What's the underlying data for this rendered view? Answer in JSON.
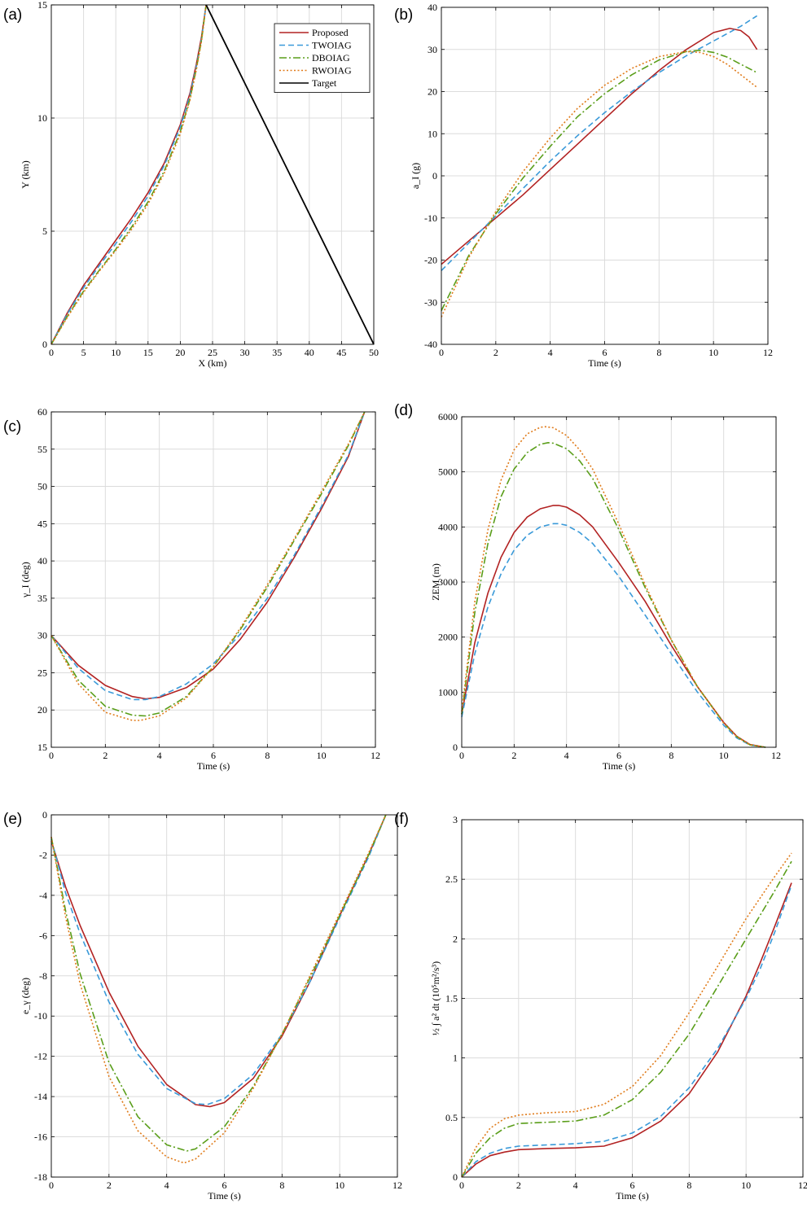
{
  "styles": {
    "Proposed": {
      "color": "#B22222",
      "dash": ""
    },
    "TWOIAG": {
      "color": "#3A9AD9",
      "dash": "7 4"
    },
    "DBOIAG": {
      "color": "#5A9E1A",
      "dash": "9 3 2 3"
    },
    "RWOIAG": {
      "color": "#E07B1A",
      "dash": "2 2.5"
    },
    "Target": {
      "color": "#000000",
      "dash": ""
    }
  },
  "chart_data": [
    {
      "id": "a",
      "panel_label": "(a)",
      "type": "line",
      "xlabel": "X (km)",
      "ylabel": "Y (km)",
      "xlim": [
        0,
        50
      ],
      "ylim": [
        0,
        15
      ],
      "xticks": [
        0,
        5,
        10,
        15,
        20,
        25,
        30,
        35,
        40,
        45,
        50
      ],
      "yticks": [
        0,
        5,
        10,
        15
      ],
      "grid": true,
      "legend": {
        "placement": "top-right",
        "entries": [
          "Proposed",
          "TWOIAG",
          "DBOIAG",
          "RWOIAG",
          "Target"
        ]
      },
      "series": [
        {
          "name": "Proposed",
          "x": [
            0,
            2.5,
            5,
            7.5,
            10,
            12.5,
            15,
            17.5,
            20,
            21.5,
            22.5,
            23.3,
            24
          ],
          "y": [
            0,
            1.4,
            2.6,
            3.6,
            4.6,
            5.6,
            6.7,
            8.0,
            9.7,
            11.1,
            12.4,
            13.6,
            15
          ]
        },
        {
          "name": "TWOIAG",
          "x": [
            0,
            2.5,
            5,
            7.5,
            10,
            12.5,
            15,
            17.5,
            20,
            21.5,
            22.5,
            23.3,
            24
          ],
          "y": [
            0,
            1.35,
            2.5,
            3.5,
            4.45,
            5.45,
            6.55,
            7.9,
            9.6,
            11.0,
            12.3,
            13.5,
            15
          ]
        },
        {
          "name": "DBOIAG",
          "x": [
            0,
            2.5,
            5,
            7.5,
            10,
            12.5,
            15,
            17.5,
            20,
            21.5,
            22.5,
            23.3,
            24
          ],
          "y": [
            0,
            1.25,
            2.35,
            3.3,
            4.2,
            5.2,
            6.3,
            7.65,
            9.4,
            10.85,
            12.2,
            13.45,
            15
          ]
        },
        {
          "name": "RWOIAG",
          "x": [
            0,
            2.5,
            5,
            7.5,
            10,
            12.5,
            15,
            17.5,
            20,
            21.5,
            22.5,
            23.3,
            24
          ],
          "y": [
            0,
            1.2,
            2.3,
            3.25,
            4.15,
            5.1,
            6.2,
            7.55,
            9.3,
            10.8,
            12.15,
            13.4,
            15
          ]
        },
        {
          "name": "Target",
          "x": [
            24,
            50
          ],
          "y": [
            15,
            0
          ]
        }
      ]
    },
    {
      "id": "b",
      "panel_label": "(b)",
      "type": "line",
      "xlabel": "Time (s)",
      "ylabel": "a_I (g)",
      "xlim": [
        0,
        12
      ],
      "ylim": [
        -40,
        40
      ],
      "xticks": [
        0,
        2,
        4,
        6,
        8,
        10,
        12
      ],
      "yticks": [
        -40,
        -30,
        -20,
        -10,
        0,
        10,
        20,
        30,
        40
      ],
      "grid": true,
      "series": [
        {
          "name": "Proposed",
          "x": [
            0,
            1,
            2,
            3,
            4,
            5,
            6,
            7,
            8,
            9,
            10,
            10.6,
            11,
            11.3,
            11.6
          ],
          "y": [
            -21,
            -15.5,
            -10,
            -4.5,
            1.5,
            7.5,
            13.5,
            19.5,
            25,
            30,
            34,
            35,
            34.5,
            33,
            30
          ]
        },
        {
          "name": "TWOIAG",
          "x": [
            0,
            1,
            2,
            3,
            4,
            5,
            6,
            7,
            8,
            9,
            10,
            11,
            11.6
          ],
          "y": [
            -22.5,
            -16,
            -9.5,
            -3,
            3.5,
            9.5,
            15,
            20,
            24.5,
            28.5,
            32,
            35.5,
            38
          ]
        },
        {
          "name": "DBOIAG",
          "x": [
            0,
            1,
            2,
            3,
            4,
            5,
            6,
            7,
            8,
            9,
            9.5,
            10,
            10.5,
            11,
            11.6
          ],
          "y": [
            -32,
            -19,
            -9,
            -0.5,
            7,
            14,
            19.5,
            24,
            27.5,
            29.5,
            29.8,
            29.3,
            28.2,
            26.5,
            24.5
          ]
        },
        {
          "name": "RWOIAG",
          "x": [
            0,
            1,
            2,
            3,
            4,
            5,
            6,
            7,
            8,
            9,
            9.5,
            10,
            10.5,
            11,
            11.6
          ],
          "y": [
            -33.5,
            -19.5,
            -8.5,
            1,
            9,
            16,
            21.5,
            25.5,
            28.3,
            29.5,
            29.3,
            28.3,
            26.5,
            24,
            21
          ]
        }
      ]
    },
    {
      "id": "c",
      "panel_label": "(c)",
      "type": "line",
      "xlabel": "Time (s)",
      "ylabel": "γ_I (deg)",
      "xlim": [
        0,
        12
      ],
      "ylim": [
        15,
        60
      ],
      "xticks": [
        0,
        2,
        4,
        6,
        8,
        10,
        12
      ],
      "yticks": [
        15,
        20,
        25,
        30,
        35,
        40,
        45,
        50,
        55,
        60
      ],
      "grid": true,
      "series": [
        {
          "name": "Proposed",
          "x": [
            0,
            1,
            2,
            3,
            3.5,
            4,
            5,
            6,
            7,
            8,
            9,
            10,
            11,
            11.6
          ],
          "y": [
            30,
            26,
            23.3,
            21.8,
            21.5,
            21.7,
            23,
            25.5,
            29.5,
            34.5,
            40.5,
            47,
            54,
            60
          ]
        },
        {
          "name": "TWOIAG",
          "x": [
            0,
            1,
            2,
            3,
            3.5,
            4,
            5,
            6,
            7,
            8,
            9,
            10,
            11,
            11.6
          ],
          "y": [
            30,
            25.6,
            22.6,
            21.4,
            21.4,
            21.8,
            23.5,
            26.2,
            30.2,
            35,
            40.8,
            47.3,
            54.2,
            60
          ]
        },
        {
          "name": "DBOIAG",
          "x": [
            0,
            1,
            2,
            3,
            3.5,
            4,
            5,
            6,
            7,
            8,
            9,
            10,
            11,
            11.6
          ],
          "y": [
            30,
            24,
            20.5,
            19.3,
            19.2,
            19.6,
            21.8,
            25.8,
            30.8,
            36.5,
            42.8,
            49,
            55.5,
            60
          ]
        },
        {
          "name": "RWOIAG",
          "x": [
            0,
            1,
            2,
            3,
            3.3,
            4,
            5,
            6,
            7,
            8,
            9,
            10,
            11,
            11.6
          ],
          "y": [
            30,
            23.5,
            19.7,
            18.6,
            18.6,
            19.2,
            21.6,
            25.8,
            31,
            36.8,
            43,
            49.3,
            55.7,
            60
          ]
        }
      ]
    },
    {
      "id": "d",
      "panel_label": "(d)",
      "type": "line",
      "xlabel": "Time (s)",
      "ylabel": "ZEM (m)",
      "xlim": [
        0,
        12
      ],
      "ylim": [
        0,
        6000
      ],
      "xticks": [
        0,
        2,
        4,
        6,
        8,
        10,
        12
      ],
      "yticks": [
        0,
        1000,
        2000,
        3000,
        4000,
        5000,
        6000
      ],
      "grid": true,
      "series": [
        {
          "name": "Proposed",
          "x": [
            0,
            0.5,
            1,
            1.5,
            2,
            2.5,
            3,
            3.5,
            3.7,
            4,
            4.5,
            5,
            6,
            7,
            8,
            9,
            10,
            10.5,
            11,
            11.6
          ],
          "y": [
            600,
            1900,
            2800,
            3450,
            3900,
            4180,
            4330,
            4390,
            4390,
            4360,
            4220,
            4000,
            3350,
            2650,
            1850,
            1100,
            450,
            200,
            50,
            0
          ]
        },
        {
          "name": "TWOIAG",
          "x": [
            0,
            0.5,
            1,
            1.5,
            2,
            2.5,
            3,
            3.5,
            3.7,
            4,
            4.5,
            5,
            6,
            7,
            8,
            9,
            10,
            10.5,
            11,
            11.6
          ],
          "y": [
            550,
            1700,
            2550,
            3150,
            3580,
            3850,
            4000,
            4060,
            4060,
            4030,
            3900,
            3700,
            3100,
            2400,
            1700,
            1000,
            400,
            170,
            40,
            0
          ]
        },
        {
          "name": "DBOIAG",
          "x": [
            0,
            0.5,
            1,
            1.5,
            2,
            2.5,
            3,
            3.3,
            3.5,
            4,
            4.5,
            5,
            6,
            7,
            8,
            9,
            10,
            10.5,
            11,
            11.6
          ],
          "y": [
            600,
            2450,
            3700,
            4550,
            5050,
            5350,
            5500,
            5530,
            5520,
            5420,
            5200,
            4880,
            3950,
            2900,
            1950,
            1100,
            440,
            190,
            45,
            0
          ]
        },
        {
          "name": "RWOIAG",
          "x": [
            0,
            0.5,
            1,
            1.5,
            2,
            2.5,
            3,
            3.2,
            3.5,
            4,
            4.5,
            5,
            6,
            7,
            8,
            9,
            10,
            10.5,
            11,
            11.6
          ],
          "y": [
            650,
            2650,
            3950,
            4850,
            5400,
            5690,
            5810,
            5820,
            5800,
            5660,
            5400,
            5050,
            4050,
            2950,
            1950,
            1100,
            440,
            190,
            45,
            0
          ]
        }
      ]
    },
    {
      "id": "e",
      "panel_label": "(e)",
      "type": "line",
      "xlabel": "Time (s)",
      "ylabel": "e_γ (deg)",
      "xlim": [
        0,
        12
      ],
      "ylim": [
        -18,
        0
      ],
      "xticks": [
        0,
        2,
        4,
        6,
        8,
        10,
        12
      ],
      "yticks": [
        -18,
        -16,
        -14,
        -12,
        -10,
        -8,
        -6,
        -4,
        -2,
        0
      ],
      "grid": true,
      "series": [
        {
          "name": "Proposed",
          "x": [
            0,
            0.5,
            1,
            2,
            3,
            4,
            5,
            5.5,
            6,
            7,
            8,
            9,
            10,
            11,
            11.6
          ],
          "y": [
            -1.3,
            -3.6,
            -5.5,
            -8.8,
            -11.5,
            -13.4,
            -14.4,
            -14.5,
            -14.3,
            -13.1,
            -11,
            -8.2,
            -5,
            -2,
            0
          ]
        },
        {
          "name": "TWOIAG",
          "x": [
            0,
            0.5,
            1,
            2,
            3,
            4,
            5,
            5.4,
            6,
            7,
            8,
            9,
            10,
            11,
            11.6
          ],
          "y": [
            -1.2,
            -3.9,
            -5.9,
            -9.3,
            -11.9,
            -13.6,
            -14.35,
            -14.4,
            -14.1,
            -12.9,
            -10.9,
            -8.2,
            -5.1,
            -2.1,
            0
          ]
        },
        {
          "name": "DBOIAG",
          "x": [
            0,
            0.5,
            1,
            2,
            3,
            4,
            4.7,
            5,
            6,
            7,
            8,
            9,
            10,
            11,
            11.6
          ],
          "y": [
            -1.1,
            -4.8,
            -7.9,
            -12.3,
            -15,
            -16.4,
            -16.7,
            -16.6,
            -15.5,
            -13.5,
            -10.9,
            -8,
            -5,
            -2,
            0
          ]
        },
        {
          "name": "RWOIAG",
          "x": [
            0,
            0.5,
            1,
            2,
            3,
            4,
            4.6,
            5,
            6,
            7,
            8,
            9,
            10,
            11,
            11.6
          ],
          "y": [
            -1.1,
            -5.1,
            -8.4,
            -13,
            -15.7,
            -17,
            -17.3,
            -17.1,
            -15.8,
            -13.6,
            -10.9,
            -7.9,
            -4.9,
            -1.9,
            0
          ]
        }
      ]
    },
    {
      "id": "f",
      "panel_label": "(f)",
      "type": "line",
      "xlabel": "Time (s)",
      "ylabel": "½ ∫ a² dt  (10⁵m²/s³)",
      "xlim": [
        0,
        12
      ],
      "ylim": [
        0,
        3
      ],
      "xticks": [
        0,
        2,
        4,
        6,
        8,
        10,
        12
      ],
      "yticks": [
        0,
        0.5,
        1,
        1.5,
        2,
        2.5,
        3
      ],
      "ytick_labels": [
        "0",
        "0.5",
        "1",
        "1.5",
        "2",
        "2.5",
        "3"
      ],
      "grid": true,
      "series": [
        {
          "name": "Proposed",
          "x": [
            0,
            0.5,
            1,
            1.5,
            2,
            3,
            4,
            5,
            6,
            7,
            8,
            9,
            10,
            10.5,
            11,
            11.6
          ],
          "y": [
            0,
            0.11,
            0.18,
            0.21,
            0.23,
            0.24,
            0.245,
            0.26,
            0.33,
            0.47,
            0.7,
            1.05,
            1.52,
            1.8,
            2.1,
            2.47
          ]
        },
        {
          "name": "TWOIAG",
          "x": [
            0,
            0.5,
            1,
            1.5,
            2,
            3,
            4,
            5,
            6,
            7,
            8,
            9,
            10,
            10.5,
            11,
            11.6
          ],
          "y": [
            0,
            0.13,
            0.2,
            0.24,
            0.26,
            0.27,
            0.28,
            0.3,
            0.37,
            0.51,
            0.75,
            1.08,
            1.5,
            1.75,
            2.05,
            2.45
          ]
        },
        {
          "name": "DBOIAG",
          "x": [
            0,
            0.5,
            1,
            1.5,
            2,
            3,
            4,
            5,
            6,
            7,
            8,
            9,
            10,
            11,
            11.6
          ],
          "y": [
            0,
            0.2,
            0.33,
            0.41,
            0.45,
            0.46,
            0.47,
            0.52,
            0.65,
            0.88,
            1.2,
            1.6,
            2.0,
            2.4,
            2.65
          ]
        },
        {
          "name": "RWOIAG",
          "x": [
            0,
            0.5,
            1,
            1.5,
            2,
            3,
            4,
            5,
            6,
            7,
            8,
            9,
            10,
            11,
            11.6
          ],
          "y": [
            0,
            0.25,
            0.41,
            0.49,
            0.52,
            0.54,
            0.55,
            0.61,
            0.76,
            1.02,
            1.38,
            1.77,
            2.17,
            2.52,
            2.72
          ]
        }
      ]
    }
  ]
}
